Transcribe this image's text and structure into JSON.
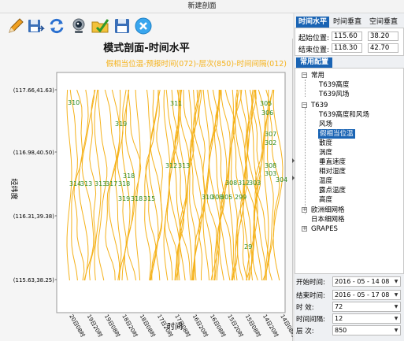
{
  "window": {
    "title": "新建剖面"
  },
  "toolbar": {
    "tools": [
      "pencil-icon",
      "save-as-icon",
      "refresh-icon",
      "camera-icon",
      "folder-check-icon",
      "save-icon",
      "close-circle-icon"
    ]
  },
  "chart_data": {
    "type": "line",
    "title": "模式剖面-时间水平",
    "subtitle": "假相当位温-预报时间(072)-层次(850)-时间间隔(012)",
    "ylabel": "经纬度",
    "xlabel": "时间",
    "y_ticks": [
      "(117.66,41.63)",
      "(116.98,40.50)",
      "(116.31,39.38)",
      "(115.63,38.25)"
    ],
    "x_ticks": [
      "20日08时",
      "19日20时",
      "19日08时",
      "18日20时",
      "18日08时",
      "17日20时",
      "17日08时",
      "16日20时",
      "16日08时",
      "15日20时",
      "15日08时",
      "14日20时",
      "14日08时"
    ],
    "contour_color": "#f5b21b",
    "label_color": "#2e8b22",
    "contour_labels": [
      "310",
      "319",
      "311",
      "305",
      "306",
      "314",
      "313",
      "313",
      "317",
      "318",
      "312",
      "313",
      "307",
      "302",
      "308",
      "303",
      "304",
      "318",
      "319",
      "318",
      "315",
      "310",
      "308",
      "305",
      "299",
      "308",
      "312",
      "303",
      "29"
    ]
  },
  "tabs": [
    {
      "label": "时间水平",
      "active": true
    },
    {
      "label": "时间垂直",
      "active": false
    },
    {
      "label": "空间垂直",
      "active": false
    }
  ],
  "coords": {
    "start_label": "起始位置:",
    "start_lon": "115.60",
    "start_lat": "38.20",
    "end_label": "结束位置:",
    "end_lon": "118.30",
    "end_lat": "42.70"
  },
  "config_tab": "常用配置",
  "tree": {
    "group1": "常用",
    "g1_items": [
      "T639高度",
      "T639风场"
    ],
    "group2": "T639",
    "g2_items": [
      "T639高度和风场",
      "风场",
      "假相当位温",
      "散度",
      "涡度",
      "垂直速度",
      "相对湿度",
      "温度",
      "露点温度",
      "高度"
    ],
    "selected": "假相当位温",
    "group3": "欧洲细网格",
    "group3b": "日本细网格",
    "group4": "GRAPES"
  },
  "controls": {
    "start_time_label": "开始时间:",
    "start_time_value": "2016 - 05 - 14   08",
    "end_time_label": "结束时间:",
    "end_time_value": "2016 - 05 - 17   08",
    "forecast_label": "时   效:",
    "forecast_value": "72",
    "interval_label": "时间间隔:",
    "interval_value": "12",
    "level_label": "层   次:",
    "level_value": "850"
  }
}
